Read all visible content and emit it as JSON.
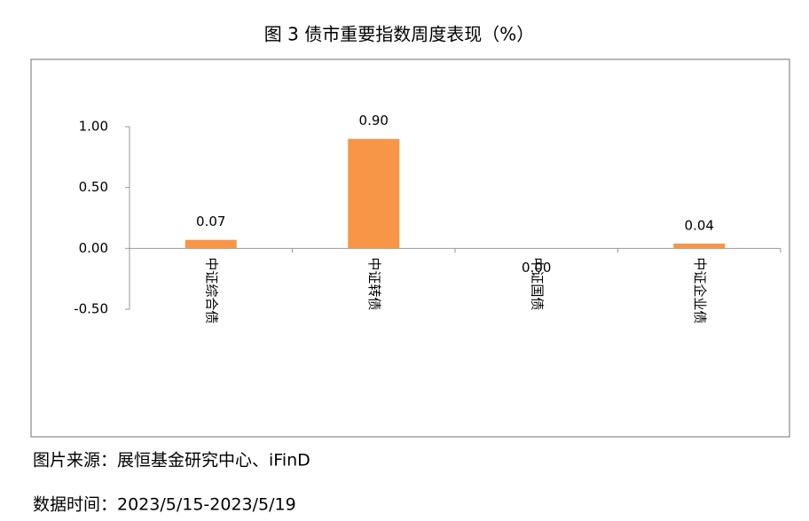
{
  "chart_data": {
    "type": "bar",
    "title": "图 3 债市重要指数周度表现（%）",
    "categories": [
      "中证综合债",
      "中证转债",
      "中证国债",
      "中证企业债"
    ],
    "values": [
      0.07,
      0.9,
      0.0,
      0.04
    ],
    "value_labels": [
      "0.07",
      "0.90",
      "0.00",
      "0.04"
    ],
    "color": "#f79646",
    "ylim": [
      -0.5,
      1.0
    ],
    "yticks": [
      {
        "value": -0.5,
        "label": "-0.50"
      },
      {
        "value": 0,
        "label": "0.00"
      },
      {
        "value": 0.5,
        "label": "0.50"
      },
      {
        "value": 1.0,
        "label": "1.00"
      }
    ],
    "grid": false,
    "source": "图片来源：展恒基金研究中心、iFinD",
    "date_range": "数据时间：2023/5/15-2023/5/19"
  }
}
